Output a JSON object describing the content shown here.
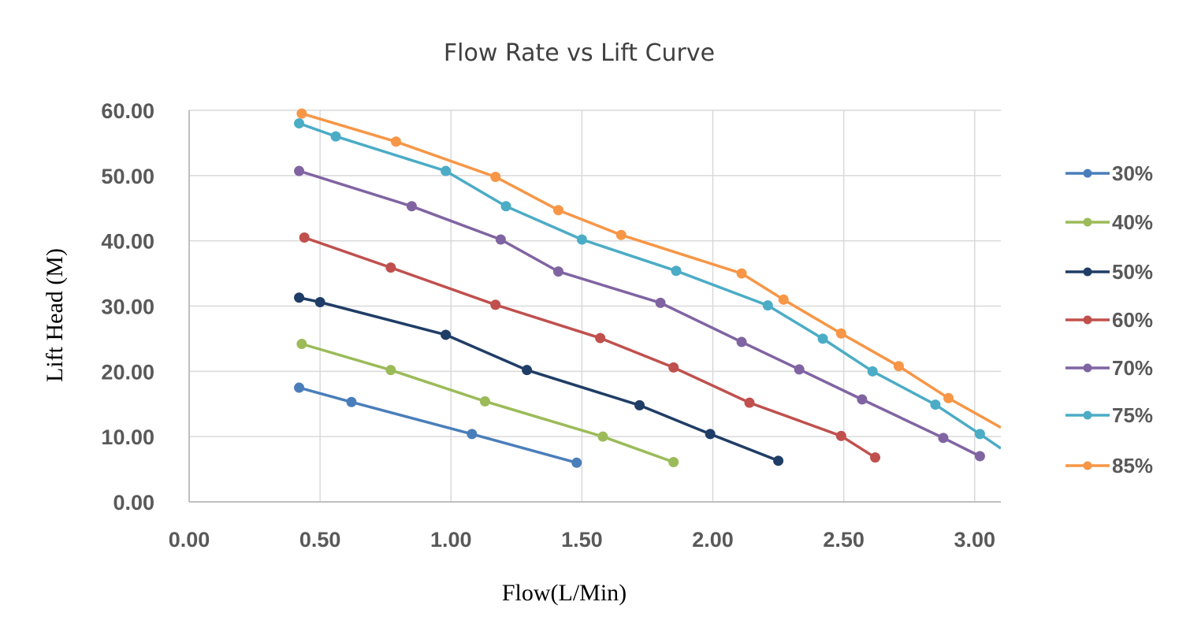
{
  "chart_data": {
    "type": "line",
    "title": "Flow Rate vs Lift Curve",
    "xlabel": "Flow(L/Min)",
    "ylabel": "Lift Head (M)",
    "xlim": [
      0,
      3.1
    ],
    "ylim": [
      0,
      60
    ],
    "x_ticks": [
      "0.00",
      "0.50",
      "1.00",
      "1.50",
      "2.00",
      "2.50",
      "3.00"
    ],
    "y_ticks": [
      "0.00",
      "10.00",
      "20.00",
      "30.00",
      "40.00",
      "50.00",
      "60.00"
    ],
    "grid": true,
    "legend_position": "right",
    "series": [
      {
        "name": "30%",
        "color": "#4a7ebb",
        "points": [
          [
            0.42,
            17.5
          ],
          [
            0.62,
            15.3
          ],
          [
            1.08,
            10.4
          ],
          [
            1.48,
            6.0
          ]
        ]
      },
      {
        "name": "40%",
        "color": "#9bbb59",
        "points": [
          [
            0.43,
            24.2
          ],
          [
            0.77,
            20.2
          ],
          [
            1.13,
            15.4
          ],
          [
            1.58,
            10.0
          ],
          [
            1.85,
            6.1
          ]
        ]
      },
      {
        "name": "50%",
        "color": "#1f3d66",
        "points": [
          [
            0.42,
            31.3
          ],
          [
            0.5,
            30.6
          ],
          [
            0.98,
            25.6
          ],
          [
            1.29,
            20.2
          ],
          [
            1.72,
            14.8
          ],
          [
            1.99,
            10.4
          ],
          [
            2.25,
            6.3
          ]
        ]
      },
      {
        "name": "60%",
        "color": "#c0504d",
        "points": [
          [
            0.44,
            40.5
          ],
          [
            0.77,
            35.9
          ],
          [
            1.17,
            30.2
          ],
          [
            1.57,
            25.1
          ],
          [
            1.85,
            20.6
          ],
          [
            2.14,
            15.2
          ],
          [
            2.49,
            10.1
          ],
          [
            2.62,
            6.8
          ]
        ]
      },
      {
        "name": "70%",
        "color": "#8064a2",
        "points": [
          [
            0.42,
            50.7
          ],
          [
            0.85,
            45.3
          ],
          [
            1.19,
            40.2
          ],
          [
            1.41,
            35.3
          ],
          [
            1.8,
            30.5
          ],
          [
            2.11,
            24.5
          ],
          [
            2.33,
            20.3
          ],
          [
            2.57,
            15.7
          ],
          [
            2.88,
            9.8
          ],
          [
            3.02,
            7.0
          ]
        ]
      },
      {
        "name": "75%",
        "color": "#4bacc6",
        "points": [
          [
            0.42,
            58.0
          ],
          [
            0.56,
            56.0
          ],
          [
            0.98,
            50.7
          ],
          [
            1.21,
            45.3
          ],
          [
            1.5,
            40.2
          ],
          [
            1.86,
            35.4
          ],
          [
            2.21,
            30.1
          ],
          [
            2.42,
            25.0
          ],
          [
            2.61,
            20.0
          ],
          [
            2.85,
            14.9
          ],
          [
            3.02,
            10.4
          ],
          [
            3.1,
            8.2
          ]
        ]
      },
      {
        "name": "85%",
        "color": "#f79646",
        "points": [
          [
            0.43,
            59.5
          ],
          [
            0.79,
            55.2
          ],
          [
            1.17,
            49.8
          ],
          [
            1.41,
            44.7
          ],
          [
            1.65,
            40.9
          ],
          [
            2.11,
            35.0
          ],
          [
            2.27,
            31.0
          ],
          [
            2.49,
            25.8
          ],
          [
            2.71,
            20.8
          ],
          [
            2.9,
            15.9
          ],
          [
            3.1,
            11.4
          ]
        ]
      }
    ]
  }
}
